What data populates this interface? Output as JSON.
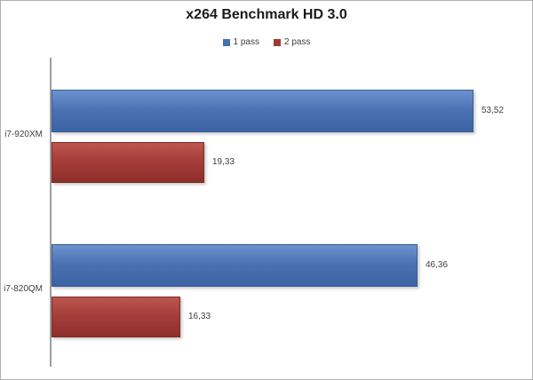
{
  "title": "x264 Benchmark HD 3.0",
  "legend": {
    "items": [
      {
        "label": "1 pass",
        "color": "#4a70b2"
      },
      {
        "label": "2 pass",
        "color": "#a23734"
      }
    ]
  },
  "chart_data": {
    "type": "bar",
    "orientation": "horizontal",
    "title": "x264 Benchmark HD 3.0",
    "categories": [
      "i7-920XM",
      "i7-820QM"
    ],
    "series": [
      {
        "name": "1 pass",
        "color": "#4a70b2",
        "values": [
          53.52,
          46.36
        ],
        "value_labels": [
          "53,52",
          "46,36"
        ]
      },
      {
        "name": "2 pass",
        "color": "#a23734",
        "values": [
          19.33,
          16.33
        ],
        "value_labels": [
          "19,33",
          "16,33"
        ]
      }
    ],
    "xlabel": "",
    "ylabel": "",
    "xlim": [
      0,
      60
    ],
    "grid": false,
    "gridlines": "none",
    "legend_position": "top",
    "value_labels_shown": true,
    "decimal_separator": ","
  }
}
